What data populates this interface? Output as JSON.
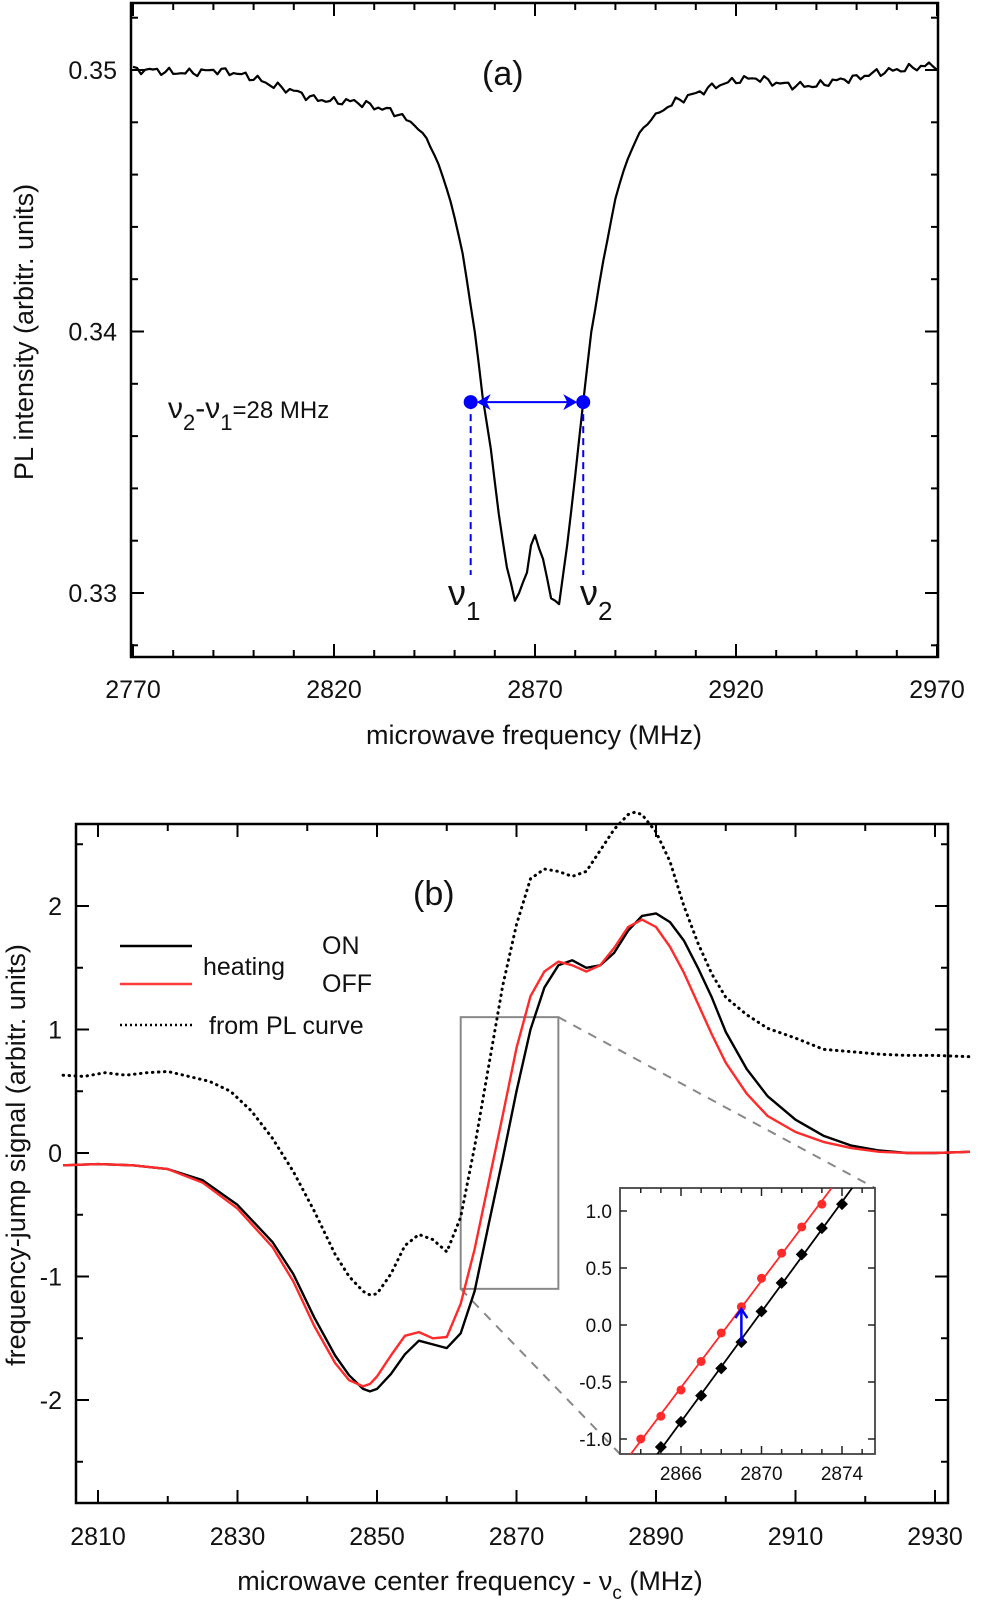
{
  "chart_data": [
    {
      "id": "a",
      "type": "line",
      "panel_label": "(a)",
      "xlabel": "microwave frequency (MHz)",
      "ylabel": "PL intensity (arbitr. units)",
      "xlim": [
        2770,
        2970
      ],
      "ylim": [
        0.3275,
        0.3525
      ],
      "xticks": [
        2770,
        2820,
        2870,
        2920,
        2970
      ],
      "xtick_labels": [
        "2770",
        "2820",
        "2870",
        "2920",
        "2970"
      ],
      "yticks": [
        0.33,
        0.34,
        0.35
      ],
      "ytick_labels": [
        "0.33",
        "0.34",
        "0.35"
      ],
      "grid": false,
      "series": [
        {
          "name": "PL intensity",
          "color": "#000000",
          "x": [
            2770,
            2775,
            2780,
            2785,
            2790,
            2795,
            2800,
            2805,
            2810,
            2815,
            2820,
            2825,
            2830,
            2835,
            2840,
            2843,
            2846,
            2849,
            2852,
            2855,
            2857,
            2859,
            2861,
            2863,
            2865,
            2866,
            2868,
            2869,
            2870,
            2872,
            2874,
            2876,
            2878,
            2880,
            2882,
            2884,
            2887,
            2890,
            2893,
            2896,
            2900,
            2905,
            2910,
            2915,
            2920,
            2925,
            2930,
            2935,
            2940,
            2945,
            2950,
            2955,
            2960,
            2965,
            2968,
            2970
          ],
          "y": [
            0.35,
            0.35,
            0.3499,
            0.3499,
            0.35,
            0.3499,
            0.3497,
            0.3494,
            0.3492,
            0.3489,
            0.3488,
            0.3488,
            0.3486,
            0.3484,
            0.3479,
            0.3474,
            0.3464,
            0.345,
            0.343,
            0.34,
            0.3375,
            0.3355,
            0.333,
            0.331,
            0.3297,
            0.33,
            0.3308,
            0.3318,
            0.3322,
            0.3313,
            0.3298,
            0.3296,
            0.3318,
            0.3345,
            0.3373,
            0.34,
            0.3427,
            0.3451,
            0.3466,
            0.3476,
            0.3483,
            0.3488,
            0.3491,
            0.3494,
            0.3496,
            0.3497,
            0.3495,
            0.3494,
            0.3494,
            0.3496,
            0.3497,
            0.3499,
            0.35,
            0.3501,
            0.3502,
            0.35
          ]
        }
      ],
      "annotations": {
        "width_label_prefix": "ν",
        "width_label": "ν2-ν1=28 MHz",
        "width_text_parts": [
          "ν",
          "2",
          "-ν",
          "1",
          "=28 MHz"
        ],
        "nu1_label": "ν",
        "nu1_sub": "1",
        "nu2_label": "ν",
        "nu2_sub": "2",
        "nu1_x": 2854,
        "nu2_x": 2882,
        "marker_y": 0.3373,
        "marker_color": "#0000ff"
      }
    },
    {
      "id": "b",
      "type": "line",
      "panel_label": "(b)",
      "xlabel": "microwave center frequency - ν",
      "xlabel_sub": "c",
      "xlabel_suffix": " (MHz)",
      "ylabel": "frequency-jump signal (arbitr. units)",
      "xlim": [
        2805,
        2935
      ],
      "ylim": [
        -2.85,
        2.85
      ],
      "xticks": [
        2810,
        2830,
        2850,
        2870,
        2890,
        2910,
        2930
      ],
      "xtick_labels": [
        "2810",
        "2830",
        "2850",
        "2870",
        "2890",
        "2910",
        "2930"
      ],
      "yticks": [
        -2,
        -1,
        0,
        1,
        2
      ],
      "ytick_labels": [
        "-2",
        "-1",
        "0",
        "1",
        "2"
      ],
      "grid": false,
      "legend": {
        "placement": "top-left",
        "entries": [
          {
            "label": "ON",
            "color": "#000000",
            "style": "solid"
          },
          {
            "label": "OFF",
            "color": "#ff2020",
            "style": "solid"
          },
          {
            "label": "from PL curve",
            "color": "#000000",
            "style": "dotted"
          }
        ],
        "group_label": "heating"
      },
      "series": [
        {
          "name": "heating ON",
          "color": "#000000",
          "style": "solid",
          "x": [
            2805,
            2810,
            2815,
            2820,
            2825,
            2830,
            2835,
            2838,
            2841,
            2844,
            2846,
            2848,
            2849,
            2850,
            2852,
            2854,
            2856,
            2858,
            2860,
            2862,
            2864,
            2866,
            2868,
            2870,
            2872,
            2874,
            2876,
            2878,
            2880,
            2882,
            2884,
            2886,
            2888,
            2890,
            2892,
            2894,
            2896,
            2898,
            2900,
            2903,
            2906,
            2910,
            2914,
            2918,
            2922,
            2926,
            2930,
            2935
          ],
          "y": [
            -0.1,
            -0.09,
            -0.1,
            -0.13,
            -0.22,
            -0.42,
            -0.72,
            -0.98,
            -1.33,
            -1.64,
            -1.8,
            -1.91,
            -1.93,
            -1.91,
            -1.79,
            -1.63,
            -1.52,
            -1.55,
            -1.58,
            -1.46,
            -1.12,
            -0.58,
            -0.05,
            0.5,
            1.0,
            1.34,
            1.52,
            1.56,
            1.5,
            1.52,
            1.62,
            1.8,
            1.92,
            1.94,
            1.87,
            1.72,
            1.5,
            1.26,
            0.98,
            0.68,
            0.46,
            0.27,
            0.14,
            0.06,
            0.02,
            0.0,
            0.0,
            0.01
          ]
        },
        {
          "name": "heating OFF",
          "color": "#ff2020",
          "style": "solid",
          "x": [
            2805,
            2810,
            2815,
            2820,
            2825,
            2830,
            2835,
            2838,
            2841,
            2844,
            2846,
            2848,
            2849,
            2850,
            2852,
            2854,
            2856,
            2858,
            2860,
            2862,
            2864,
            2866,
            2868,
            2870,
            2872,
            2874,
            2876,
            2878,
            2880,
            2882,
            2884,
            2886,
            2888,
            2890,
            2892,
            2894,
            2896,
            2898,
            2900,
            2903,
            2906,
            2910,
            2914,
            2918,
            2922,
            2926,
            2930,
            2935
          ],
          "y": [
            -0.1,
            -0.09,
            -0.1,
            -0.13,
            -0.24,
            -0.45,
            -0.76,
            -1.04,
            -1.4,
            -1.7,
            -1.84,
            -1.89,
            -1.87,
            -1.81,
            -1.64,
            -1.48,
            -1.45,
            -1.5,
            -1.49,
            -1.22,
            -0.78,
            -0.24,
            0.3,
            0.85,
            1.27,
            1.47,
            1.55,
            1.52,
            1.47,
            1.52,
            1.66,
            1.83,
            1.89,
            1.83,
            1.67,
            1.46,
            1.21,
            0.96,
            0.73,
            0.48,
            0.3,
            0.17,
            0.09,
            0.04,
            0.01,
            0.0,
            0.0,
            0.01
          ]
        },
        {
          "name": "from PL curve",
          "color": "#000000",
          "style": "dotted",
          "x": [
            2805,
            2808,
            2811,
            2814,
            2817,
            2820,
            2823,
            2826,
            2829,
            2832,
            2835,
            2838,
            2841,
            2844,
            2846,
            2848,
            2849,
            2850,
            2852,
            2854,
            2856,
            2858,
            2860,
            2862,
            2864,
            2866,
            2868,
            2870,
            2872,
            2874,
            2876,
            2878,
            2880,
            2882,
            2884,
            2886,
            2887,
            2888,
            2890,
            2892,
            2894,
            2896,
            2898,
            2900,
            2903,
            2906,
            2910,
            2914,
            2918,
            2922,
            2926,
            2930,
            2935
          ],
          "y": [
            0.63,
            0.62,
            0.65,
            0.63,
            0.65,
            0.66,
            0.62,
            0.58,
            0.5,
            0.34,
            0.12,
            -0.15,
            -0.47,
            -0.82,
            -1.0,
            -1.12,
            -1.15,
            -1.14,
            -0.98,
            -0.75,
            -0.66,
            -0.7,
            -0.8,
            -0.52,
            0.05,
            0.7,
            1.35,
            1.85,
            2.22,
            2.3,
            2.28,
            2.24,
            2.28,
            2.45,
            2.62,
            2.74,
            2.76,
            2.74,
            2.6,
            2.36,
            2.0,
            1.7,
            1.45,
            1.26,
            1.12,
            1.01,
            0.93,
            0.84,
            0.82,
            0.8,
            0.79,
            0.79,
            0.78
          ]
        }
      ],
      "zoom_box": {
        "x": [
          2862,
          2876
        ],
        "y": [
          -1.1,
          1.1
        ]
      }
    },
    {
      "id": "b-inset",
      "type": "scatter",
      "xlim": [
        2863,
        2875.5
      ],
      "ylim": [
        -1.15,
        1.2
      ],
      "xticks": [
        2866,
        2870,
        2874
      ],
      "xtick_labels": [
        "2866",
        "2870",
        "2874"
      ],
      "yticks": [
        -1.0,
        -0.5,
        0.0,
        0.5,
        1.0
      ],
      "ytick_labels": [
        "-1.0",
        "-0.5",
        "0.0",
        "0.5",
        "1.0"
      ],
      "grid": false,
      "series": [
        {
          "name": "heating OFF",
          "color": "#ff2020",
          "marker": "circle",
          "x": [
            2864,
            2865,
            2866,
            2867,
            2868,
            2869,
            2870,
            2871,
            2872,
            2873
          ],
          "y": [
            -1.0,
            -0.8,
            -0.57,
            -0.32,
            -0.07,
            0.16,
            0.41,
            0.63,
            0.86,
            1.06
          ]
        },
        {
          "name": "heating ON",
          "color": "#000000",
          "marker": "diamond",
          "x": [
            2865,
            2866,
            2867,
            2868,
            2869,
            2870,
            2871,
            2872,
            2873,
            2874
          ],
          "y": [
            -1.07,
            -0.85,
            -0.62,
            -0.38,
            -0.15,
            0.12,
            0.37,
            0.62,
            0.85,
            1.06
          ]
        }
      ],
      "arrow": {
        "x": 2869,
        "from_y": -0.15,
        "to_y": 0.14,
        "color": "#0000ff"
      }
    }
  ]
}
